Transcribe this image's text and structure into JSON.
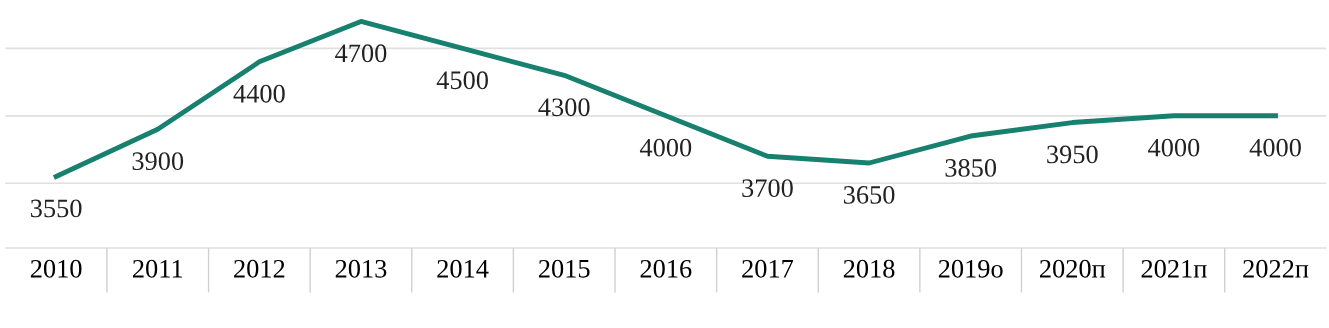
{
  "chart_data": {
    "type": "line",
    "categories": [
      "2010",
      "2011",
      "2012",
      "2013",
      "2014",
      "2015",
      "2016",
      "2017",
      "2018",
      "2019о",
      "2020п",
      "2021п",
      "2022п"
    ],
    "series": [
      {
        "color": "#17806f",
        "values": [
          3550,
          3900,
          4400,
          4700,
          4500,
          4300,
          4000,
          3700,
          3650,
          3850,
          3950,
          4000,
          4000
        ]
      }
    ],
    "data_labels": true,
    "ref_lines": [
      {
        "axis": "y",
        "value": 3500,
        "color": "#e0e0e0"
      },
      {
        "axis": "y",
        "value": 4000,
        "color": "#e0e0e0"
      },
      {
        "axis": "y",
        "value": 4500,
        "color": "#e0e0e0"
      }
    ],
    "tick_labels": "x",
    "marker": "none",
    "line_style": "solid"
  }
}
